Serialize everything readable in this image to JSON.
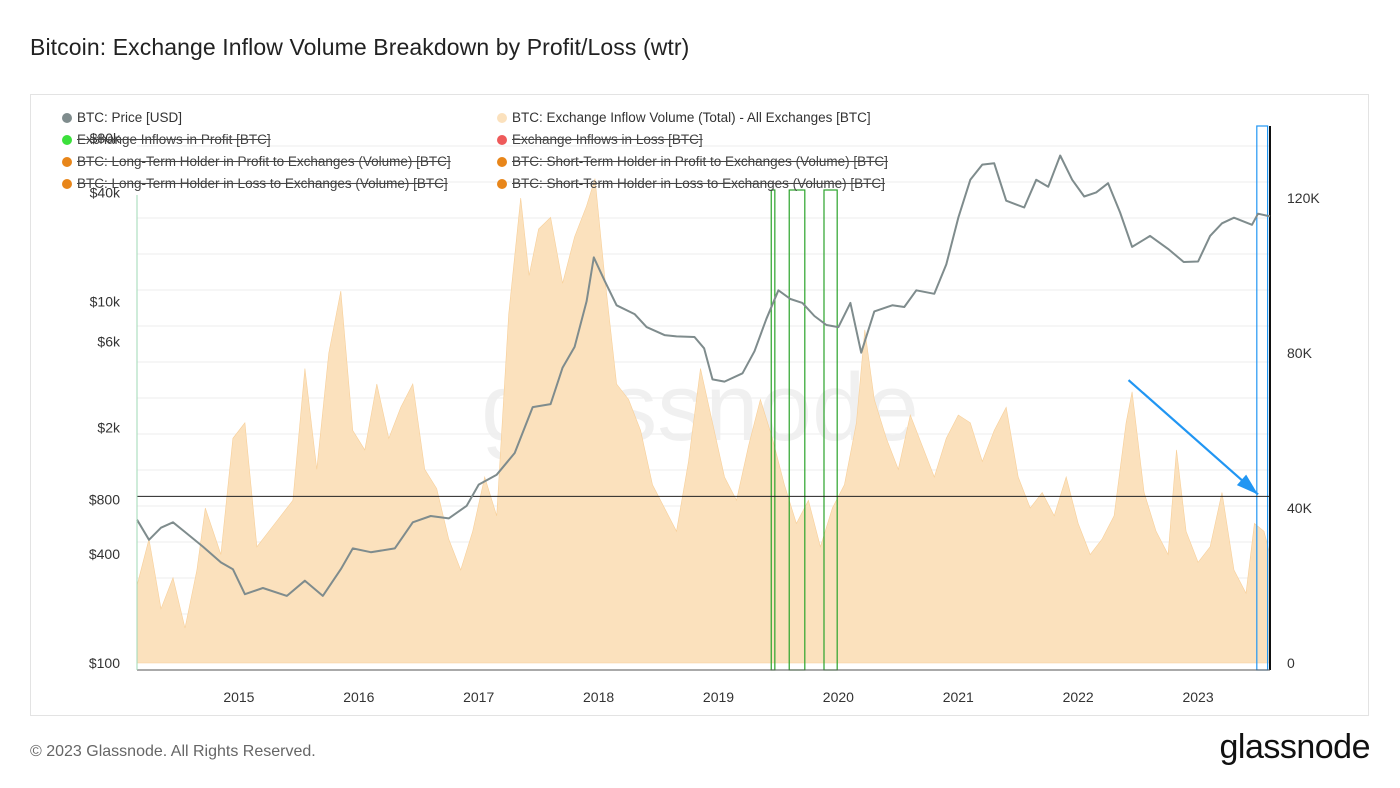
{
  "title": "Bitcoin: Exchange Inflow Volume Breakdown by Profit/Loss (wtr)",
  "footer": "© 2023 Glassnode. All Rights Reserved.",
  "brand": "glassnode",
  "watermark": "glassnode",
  "legend": [
    {
      "label": "BTC: Price [USD]",
      "color": "#7f8c8d",
      "struck": false
    },
    {
      "label": "BTC: Exchange Inflow Volume (Total) - All Exchanges [BTC]",
      "color": "#fbe1bd",
      "struck": false
    },
    {
      "label": "Exchange Inflows in Profit [BTC]",
      "color": "#3be03b",
      "struck": true
    },
    {
      "label": "Exchange Inflows in Loss [BTC]",
      "color": "#ee5a5a",
      "struck": true
    },
    {
      "label": "BTC: Long-Term Holder in Profit to Exchanges (Volume) [BTC]",
      "color": "#e8861a",
      "struck": true
    },
    {
      "label": "BTC: Short-Term Holder in Profit to Exchanges (Volume) [BTC]",
      "color": "#e8861a",
      "struck": true
    },
    {
      "label": "BTC: Long-Term Holder in Loss to Exchanges (Volume) [BTC]",
      "color": "#e8861a",
      "struck": true
    },
    {
      "label": "BTC: Short-Term Holder in Loss to Exchanges (Volume) [BTC]",
      "color": "#e8861a",
      "struck": true
    }
  ],
  "chart_data": {
    "type": "area",
    "x_ticks": [
      "2015",
      "2016",
      "2017",
      "2018",
      "2019",
      "2020",
      "2021",
      "2022",
      "2023"
    ],
    "x_range": [
      2014.15,
      2023.6
    ],
    "y_left": {
      "scale": "log",
      "ticks": [
        "$100",
        "$400",
        "$800",
        "$2k",
        "$6k",
        "$10k",
        "$40k",
        "$80k"
      ],
      "tick_values": [
        100,
        400,
        800,
        2000,
        6000,
        10000,
        40000,
        80000
      ]
    },
    "y_right": {
      "scale": "linear",
      "ticks": [
        "0",
        "40K",
        "80K",
        "120K"
      ],
      "tick_values": [
        0,
        40000,
        80000,
        120000
      ],
      "range": [
        0,
        140000
      ]
    },
    "grid": true,
    "legend_position": "top-left",
    "series": [
      {
        "name": "BTC: Price [USD]",
        "axis": "left",
        "color": "#7f8c8d",
        "points": [
          [
            2014.15,
            620
          ],
          [
            2014.25,
            480
          ],
          [
            2014.35,
            560
          ],
          [
            2014.45,
            600
          ],
          [
            2014.55,
            530
          ],
          [
            2014.7,
            440
          ],
          [
            2014.85,
            360
          ],
          [
            2014.95,
            330
          ],
          [
            2015.05,
            240
          ],
          [
            2015.2,
            260
          ],
          [
            2015.4,
            235
          ],
          [
            2015.55,
            285
          ],
          [
            2015.7,
            235
          ],
          [
            2015.85,
            330
          ],
          [
            2015.95,
            430
          ],
          [
            2016.1,
            410
          ],
          [
            2016.3,
            430
          ],
          [
            2016.45,
            600
          ],
          [
            2016.6,
            650
          ],
          [
            2016.75,
            630
          ],
          [
            2016.9,
            740
          ],
          [
            2017.0,
            970
          ],
          [
            2017.15,
            1100
          ],
          [
            2017.3,
            1450
          ],
          [
            2017.45,
            2600
          ],
          [
            2017.6,
            2700
          ],
          [
            2017.7,
            4300
          ],
          [
            2017.8,
            5600
          ],
          [
            2017.9,
            10000
          ],
          [
            2017.96,
            17500
          ],
          [
            2018.05,
            13000
          ],
          [
            2018.15,
            9500
          ],
          [
            2018.3,
            8500
          ],
          [
            2018.4,
            7200
          ],
          [
            2018.55,
            6500
          ],
          [
            2018.65,
            6400
          ],
          [
            2018.8,
            6350
          ],
          [
            2018.88,
            5500
          ],
          [
            2018.95,
            3700
          ],
          [
            2019.05,
            3600
          ],
          [
            2019.2,
            4000
          ],
          [
            2019.3,
            5300
          ],
          [
            2019.4,
            8000
          ],
          [
            2019.5,
            11500
          ],
          [
            2019.6,
            10300
          ],
          [
            2019.7,
            9800
          ],
          [
            2019.8,
            8300
          ],
          [
            2019.9,
            7400
          ],
          [
            2020.0,
            7200
          ],
          [
            2020.1,
            9800
          ],
          [
            2020.19,
            5200
          ],
          [
            2020.3,
            8800
          ],
          [
            2020.45,
            9500
          ],
          [
            2020.55,
            9300
          ],
          [
            2020.65,
            11500
          ],
          [
            2020.8,
            11000
          ],
          [
            2020.9,
            16000
          ],
          [
            2021.0,
            29000
          ],
          [
            2021.1,
            47000
          ],
          [
            2021.2,
            57000
          ],
          [
            2021.3,
            58000
          ],
          [
            2021.4,
            36000
          ],
          [
            2021.55,
            33000
          ],
          [
            2021.65,
            47000
          ],
          [
            2021.75,
            43000
          ],
          [
            2021.85,
            64000
          ],
          [
            2021.95,
            47000
          ],
          [
            2022.05,
            38000
          ],
          [
            2022.15,
            40000
          ],
          [
            2022.25,
            45000
          ],
          [
            2022.35,
            31000
          ],
          [
            2022.45,
            20000
          ],
          [
            2022.6,
            23000
          ],
          [
            2022.75,
            19500
          ],
          [
            2022.88,
            16500
          ],
          [
            2023.0,
            16600
          ],
          [
            2023.1,
            23000
          ],
          [
            2023.2,
            27000
          ],
          [
            2023.3,
            29000
          ],
          [
            2023.45,
            26500
          ],
          [
            2023.5,
            30500
          ],
          [
            2023.6,
            29500
          ]
        ]
      },
      {
        "name": "BTC: Exchange Inflow Volume (Total) - All Exchanges [BTC]",
        "axis": "right",
        "color": "#fbe1bd",
        "points": [
          [
            2014.15,
            20000
          ],
          [
            2014.25,
            32000
          ],
          [
            2014.35,
            14000
          ],
          [
            2014.45,
            22000
          ],
          [
            2014.55,
            9000
          ],
          [
            2014.65,
            24000
          ],
          [
            2014.72,
            40000
          ],
          [
            2014.85,
            28000
          ],
          [
            2014.95,
            58000
          ],
          [
            2015.05,
            62000
          ],
          [
            2015.15,
            30000
          ],
          [
            2015.3,
            36000
          ],
          [
            2015.45,
            42000
          ],
          [
            2015.55,
            76000
          ],
          [
            2015.65,
            50000
          ],
          [
            2015.75,
            80000
          ],
          [
            2015.85,
            96000
          ],
          [
            2015.95,
            60000
          ],
          [
            2016.05,
            55000
          ],
          [
            2016.15,
            72000
          ],
          [
            2016.25,
            58000
          ],
          [
            2016.35,
            66000
          ],
          [
            2016.45,
            72000
          ],
          [
            2016.55,
            50000
          ],
          [
            2016.65,
            45000
          ],
          [
            2016.75,
            32000
          ],
          [
            2016.85,
            24000
          ],
          [
            2016.95,
            34000
          ],
          [
            2017.05,
            48000
          ],
          [
            2017.15,
            38000
          ],
          [
            2017.25,
            90000
          ],
          [
            2017.35,
            120000
          ],
          [
            2017.42,
            100000
          ],
          [
            2017.5,
            112000
          ],
          [
            2017.6,
            115000
          ],
          [
            2017.7,
            98000
          ],
          [
            2017.8,
            110000
          ],
          [
            2017.9,
            118000
          ],
          [
            2017.97,
            125000
          ],
          [
            2018.05,
            100000
          ],
          [
            2018.15,
            72000
          ],
          [
            2018.25,
            68000
          ],
          [
            2018.35,
            60000
          ],
          [
            2018.45,
            46000
          ],
          [
            2018.55,
            40000
          ],
          [
            2018.65,
            34000
          ],
          [
            2018.75,
            52000
          ],
          [
            2018.85,
            76000
          ],
          [
            2018.95,
            62000
          ],
          [
            2019.05,
            48000
          ],
          [
            2019.15,
            42000
          ],
          [
            2019.25,
            56000
          ],
          [
            2019.35,
            68000
          ],
          [
            2019.45,
            58000
          ],
          [
            2019.55,
            46000
          ],
          [
            2019.65,
            36000
          ],
          [
            2019.75,
            42000
          ],
          [
            2019.85,
            30000
          ],
          [
            2019.95,
            40000
          ],
          [
            2020.05,
            46000
          ],
          [
            2020.15,
            62000
          ],
          [
            2020.22,
            86000
          ],
          [
            2020.3,
            68000
          ],
          [
            2020.4,
            58000
          ],
          [
            2020.5,
            50000
          ],
          [
            2020.6,
            64000
          ],
          [
            2020.7,
            56000
          ],
          [
            2020.8,
            48000
          ],
          [
            2020.9,
            58000
          ],
          [
            2021.0,
            64000
          ],
          [
            2021.1,
            62000
          ],
          [
            2021.2,
            52000
          ],
          [
            2021.3,
            60000
          ],
          [
            2021.4,
            66000
          ],
          [
            2021.5,
            48000
          ],
          [
            2021.6,
            40000
          ],
          [
            2021.7,
            44000
          ],
          [
            2021.8,
            38000
          ],
          [
            2021.9,
            48000
          ],
          [
            2022.0,
            36000
          ],
          [
            2022.1,
            28000
          ],
          [
            2022.2,
            32000
          ],
          [
            2022.3,
            38000
          ],
          [
            2022.4,
            62000
          ],
          [
            2022.45,
            70000
          ],
          [
            2022.55,
            44000
          ],
          [
            2022.65,
            34000
          ],
          [
            2022.75,
            28000
          ],
          [
            2022.82,
            55000
          ],
          [
            2022.9,
            34000
          ],
          [
            2023.0,
            26000
          ],
          [
            2023.1,
            30000
          ],
          [
            2023.2,
            44000
          ],
          [
            2023.3,
            24000
          ],
          [
            2023.4,
            18000
          ],
          [
            2023.47,
            36000
          ],
          [
            2023.55,
            34000
          ],
          [
            2023.6,
            28000
          ]
        ]
      }
    ],
    "annotations": [
      {
        "type": "highlight",
        "x_start": 2019.44,
        "x_end": 2019.47,
        "color": "#2aa32a"
      },
      {
        "type": "highlight",
        "x_start": 2019.59,
        "x_end": 2019.72,
        "color": "#2aa32a"
      },
      {
        "type": "highlight",
        "x_start": 2019.88,
        "x_end": 2019.99,
        "color": "#2aa32a"
      },
      {
        "type": "highlight",
        "x_start": 2023.49,
        "x_end": 2023.58,
        "color": "#2196f3"
      },
      {
        "type": "reference-line",
        "axis": "right",
        "value": 43000,
        "color": "#222222"
      },
      {
        "type": "arrow",
        "from": [
          2022.42,
          73000
        ],
        "to": [
          2023.5,
          43500
        ],
        "color": "#2196f3"
      }
    ]
  }
}
